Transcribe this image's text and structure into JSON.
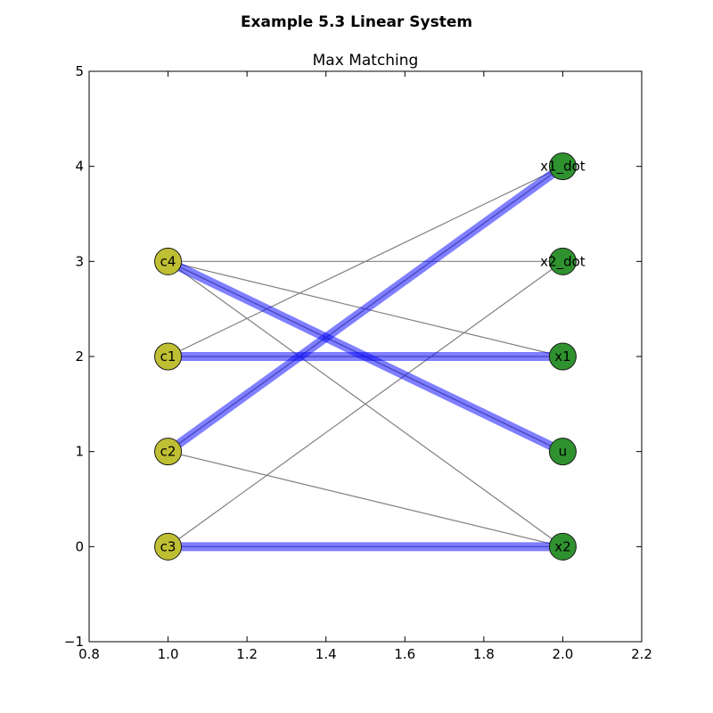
{
  "figure": {
    "suptitle": "Example 5.3 Linear System",
    "title": "Max Matching"
  },
  "chart_data": {
    "type": "scatter",
    "xlim": [
      0.8,
      2.2
    ],
    "ylim": [
      -1,
      5
    ],
    "x_ticks": [
      "0.8",
      "1.0",
      "1.2",
      "1.4",
      "1.6",
      "1.8",
      "2.0",
      "2.2"
    ],
    "y_ticks": [
      "−1",
      "0",
      "1",
      "2",
      "3",
      "4",
      "5"
    ],
    "nodes": [
      {
        "id": "c4",
        "label": "c4",
        "x": 1.0,
        "y": 3,
        "group": "constraint"
      },
      {
        "id": "c1",
        "label": "c1",
        "x": 1.0,
        "y": 2,
        "group": "constraint"
      },
      {
        "id": "c2",
        "label": "c2",
        "x": 1.0,
        "y": 1,
        "group": "constraint"
      },
      {
        "id": "c3",
        "label": "c3",
        "x": 1.0,
        "y": 0,
        "group": "constraint"
      },
      {
        "id": "x1_dot",
        "label": "x1_dot",
        "x": 2.0,
        "y": 4,
        "group": "variable"
      },
      {
        "id": "x2_dot",
        "label": "x2_dot",
        "x": 2.0,
        "y": 3,
        "group": "variable"
      },
      {
        "id": "x1",
        "label": "x1",
        "x": 2.0,
        "y": 2,
        "group": "variable"
      },
      {
        "id": "u",
        "label": "u",
        "x": 2.0,
        "y": 1,
        "group": "variable"
      },
      {
        "id": "x2",
        "label": "x2",
        "x": 2.0,
        "y": 0,
        "group": "variable"
      }
    ],
    "edges": [
      {
        "from": "c4",
        "to": "x2_dot"
      },
      {
        "from": "c4",
        "to": "x1"
      },
      {
        "from": "c4",
        "to": "u"
      },
      {
        "from": "c4",
        "to": "x2"
      },
      {
        "from": "c1",
        "to": "x1_dot"
      },
      {
        "from": "c1",
        "to": "x1"
      },
      {
        "from": "c2",
        "to": "x1_dot"
      },
      {
        "from": "c2",
        "to": "x2"
      },
      {
        "from": "c3",
        "to": "x2_dot"
      },
      {
        "from": "c3",
        "to": "x2"
      }
    ],
    "matching": [
      {
        "from": "c2",
        "to": "x1_dot"
      },
      {
        "from": "c1",
        "to": "x1"
      },
      {
        "from": "c4",
        "to": "u"
      },
      {
        "from": "c3",
        "to": "x2"
      }
    ],
    "colors": {
      "constraint": "#bfbf33",
      "variable": "#2f922f",
      "matching": "#0000ff",
      "edge": "#808080"
    }
  }
}
